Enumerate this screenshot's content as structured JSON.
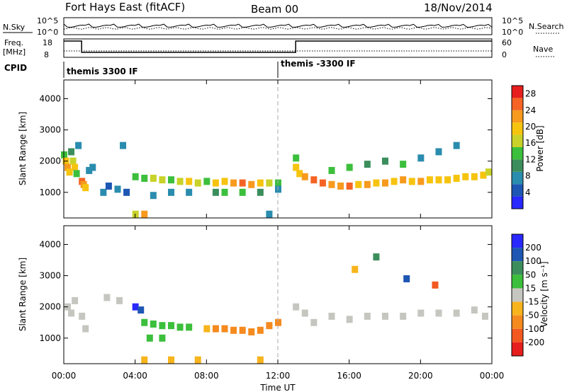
{
  "header": {
    "station": "Fort Hays East (fitACF)",
    "beam": "Beam 00",
    "date": "18/Nov/2014"
  },
  "panels": {
    "noise": {
      "left_label": "N.Sky",
      "right_label": "N.Search",
      "left_ticks": [
        "10^5",
        "10^0"
      ],
      "right_ticks": [
        "10^5",
        "10^0"
      ]
    },
    "freq": {
      "left_label_1": "Freq.",
      "left_label_2": "[MHz]",
      "right_label": "Nave",
      "left_ticks": [
        "18",
        "8"
      ],
      "right_ticks": [
        "60",
        "0"
      ]
    },
    "cpid": {
      "label": "CPID",
      "segments": [
        {
          "start_h": 0,
          "text": "themis 3300 IF"
        },
        {
          "start_h": 12,
          "text": "themis -3300 IF"
        }
      ]
    }
  },
  "colors": {
    "power": [
      "#2828ff",
      "#1e56b4",
      "#2a8cae",
      "#3b8e5c",
      "#3cbf3c",
      "#c8d228",
      "#f6c40e",
      "#f79a1e",
      "#f56424",
      "#e61e1e"
    ],
    "velocity": [
      "#2828ff",
      "#1e56b4",
      "#3b8e5c",
      "#3cbf3c",
      "#c6c6c0",
      "#f8b41c",
      "#f58a1e",
      "#f25820",
      "#e61e1e"
    ]
  },
  "chart_data": [
    {
      "type": "heatmap",
      "name": "power",
      "xlabel": "",
      "ylabel": "Slant Range [km]",
      "xlim_hours": [
        0,
        24
      ],
      "ylim_km": [
        180,
        4600
      ],
      "yticks": [
        1000,
        2000,
        3000,
        4000
      ],
      "colorbar_label": "Power [dB]",
      "colorbar_ticks": [
        4,
        8,
        12,
        16,
        20,
        24,
        28
      ],
      "colorbar_range": [
        0,
        30
      ],
      "cells": [
        {
          "x": 0.0,
          "y": 2200,
          "v": 14
        },
        {
          "x": 0.1,
          "y": 2000,
          "v": 20
        },
        {
          "x": 0.2,
          "y": 1800,
          "v": 22
        },
        {
          "x": 0.3,
          "y": 1650,
          "v": 18
        },
        {
          "x": 0.4,
          "y": 2300,
          "v": 10
        },
        {
          "x": 0.5,
          "y": 2000,
          "v": 16
        },
        {
          "x": 0.6,
          "y": 1800,
          "v": 20
        },
        {
          "x": 0.7,
          "y": 1600,
          "v": 14
        },
        {
          "x": 0.8,
          "y": 2500,
          "v": 6
        },
        {
          "x": 1.0,
          "y": 1350,
          "v": 24
        },
        {
          "x": 1.1,
          "y": 1250,
          "v": 22
        },
        {
          "x": 1.2,
          "y": 1150,
          "v": 18
        },
        {
          "x": 1.4,
          "y": 1700,
          "v": 8
        },
        {
          "x": 1.6,
          "y": 1800,
          "v": 6
        },
        {
          "x": 2.2,
          "y": 1000,
          "v": 6
        },
        {
          "x": 2.5,
          "y": 1200,
          "v": 4
        },
        {
          "x": 3.0,
          "y": 1100,
          "v": 6
        },
        {
          "x": 3.3,
          "y": 2500,
          "v": 6
        },
        {
          "x": 3.5,
          "y": 1000,
          "v": 4
        },
        {
          "x": 4.0,
          "y": 1500,
          "v": 12
        },
        {
          "x": 4.0,
          "y": 300,
          "v": 16
        },
        {
          "x": 4.5,
          "y": 1450,
          "v": 14
        },
        {
          "x": 4.5,
          "y": 300,
          "v": 22
        },
        {
          "x": 5.0,
          "y": 1450,
          "v": 16
        },
        {
          "x": 5.0,
          "y": 900,
          "v": 6
        },
        {
          "x": 5.5,
          "y": 1400,
          "v": 16
        },
        {
          "x": 6.0,
          "y": 1400,
          "v": 14
        },
        {
          "x": 6.0,
          "y": 1000,
          "v": 8
        },
        {
          "x": 6.5,
          "y": 1350,
          "v": 16
        },
        {
          "x": 7.0,
          "y": 1350,
          "v": 18
        },
        {
          "x": 7.0,
          "y": 1000,
          "v": 8
        },
        {
          "x": 7.5,
          "y": 1300,
          "v": 16
        },
        {
          "x": 8.0,
          "y": 1350,
          "v": 14
        },
        {
          "x": 8.5,
          "y": 1300,
          "v": 18
        },
        {
          "x": 8.5,
          "y": 1000,
          "v": 10
        },
        {
          "x": 9.0,
          "y": 1350,
          "v": 20
        },
        {
          "x": 9.0,
          "y": 1000,
          "v": 14
        },
        {
          "x": 9.5,
          "y": 1300,
          "v": 22
        },
        {
          "x": 10.0,
          "y": 1300,
          "v": 24
        },
        {
          "x": 10.0,
          "y": 1000,
          "v": 12
        },
        {
          "x": 10.5,
          "y": 1250,
          "v": 22
        },
        {
          "x": 11.0,
          "y": 1300,
          "v": 20
        },
        {
          "x": 11.0,
          "y": 1000,
          "v": 10
        },
        {
          "x": 11.5,
          "y": 1300,
          "v": 16
        },
        {
          "x": 11.5,
          "y": 300,
          "v": 8
        },
        {
          "x": 12.0,
          "y": 1300,
          "v": 12
        },
        {
          "x": 12.0,
          "y": 1100,
          "v": 6
        },
        {
          "x": 13.0,
          "y": 2100,
          "v": 14
        },
        {
          "x": 13.0,
          "y": 1800,
          "v": 18
        },
        {
          "x": 13.2,
          "y": 1600,
          "v": 20
        },
        {
          "x": 13.5,
          "y": 1500,
          "v": 22
        },
        {
          "x": 14.0,
          "y": 1400,
          "v": 24
        },
        {
          "x": 14.5,
          "y": 1300,
          "v": 24
        },
        {
          "x": 15.0,
          "y": 1250,
          "v": 22
        },
        {
          "x": 15.0,
          "y": 1700,
          "v": 14
        },
        {
          "x": 15.5,
          "y": 1200,
          "v": 22
        },
        {
          "x": 16.0,
          "y": 1200,
          "v": 24
        },
        {
          "x": 16.0,
          "y": 1800,
          "v": 12
        },
        {
          "x": 16.5,
          "y": 1250,
          "v": 20
        },
        {
          "x": 17.0,
          "y": 1250,
          "v": 22
        },
        {
          "x": 17.0,
          "y": 1900,
          "v": 10
        },
        {
          "x": 17.5,
          "y": 1300,
          "v": 20
        },
        {
          "x": 18.0,
          "y": 1300,
          "v": 22
        },
        {
          "x": 18.0,
          "y": 2000,
          "v": 10
        },
        {
          "x": 18.5,
          "y": 1350,
          "v": 20
        },
        {
          "x": 19.0,
          "y": 1400,
          "v": 22
        },
        {
          "x": 19.0,
          "y": 1900,
          "v": 12
        },
        {
          "x": 19.5,
          "y": 1350,
          "v": 20
        },
        {
          "x": 20.0,
          "y": 1350,
          "v": 22
        },
        {
          "x": 20.0,
          "y": 2100,
          "v": 8
        },
        {
          "x": 20.5,
          "y": 1400,
          "v": 20
        },
        {
          "x": 21.0,
          "y": 1400,
          "v": 20
        },
        {
          "x": 21.0,
          "y": 2300,
          "v": 6
        },
        {
          "x": 21.5,
          "y": 1400,
          "v": 20
        },
        {
          "x": 22.0,
          "y": 1450,
          "v": 18
        },
        {
          "x": 22.0,
          "y": 2500,
          "v": 6
        },
        {
          "x": 22.5,
          "y": 1500,
          "v": 20
        },
        {
          "x": 23.0,
          "y": 1500,
          "v": 18
        },
        {
          "x": 23.5,
          "y": 1550,
          "v": 20
        },
        {
          "x": 23.8,
          "y": 1650,
          "v": 16
        }
      ]
    },
    {
      "type": "heatmap",
      "name": "velocity",
      "xlabel": "Time UT",
      "ylabel": "Slant Range [km]",
      "xlim_hours": [
        0,
        24
      ],
      "xticks": [
        "00:00",
        "04:00",
        "08:00",
        "12:00",
        "16:00",
        "20:00",
        "00:00"
      ],
      "ylim_km": [
        180,
        4600
      ],
      "yticks": [
        1000,
        2000,
        3000,
        4000
      ],
      "colorbar_label": "Velocity [m s⁻¹]",
      "colorbar_ticks": [
        "200",
        "100",
        "50",
        "15",
        "-15",
        "-50",
        "-100",
        "-200"
      ],
      "cells": [
        {
          "x": 0.2,
          "y": 2000,
          "v": 0
        },
        {
          "x": 0.4,
          "y": 1800,
          "v": 0
        },
        {
          "x": 0.6,
          "y": 2200,
          "v": 0
        },
        {
          "x": 1.0,
          "y": 1700,
          "v": 0
        },
        {
          "x": 1.2,
          "y": 1300,
          "v": 0
        },
        {
          "x": 2.4,
          "y": 2300,
          "v": 0
        },
        {
          "x": 3.1,
          "y": 2200,
          "v": 0
        },
        {
          "x": 4.0,
          "y": 2000,
          "v": 230
        },
        {
          "x": 4.3,
          "y": 1900,
          "v": 120
        },
        {
          "x": 4.5,
          "y": 1500,
          "v": 40
        },
        {
          "x": 5.0,
          "y": 1450,
          "v": 40
        },
        {
          "x": 5.5,
          "y": 1400,
          "v": 40
        },
        {
          "x": 6.0,
          "y": 1400,
          "v": 30
        },
        {
          "x": 6.5,
          "y": 1350,
          "v": 40
        },
        {
          "x": 7.0,
          "y": 1350,
          "v": 30
        },
        {
          "x": 4.8,
          "y": 1000,
          "v": 30
        },
        {
          "x": 5.5,
          "y": 1000,
          "v": 40
        },
        {
          "x": 4.5,
          "y": 300,
          "v": -40
        },
        {
          "x": 6.0,
          "y": 300,
          "v": -40
        },
        {
          "x": 7.5,
          "y": 300,
          "v": -30
        },
        {
          "x": 8.0,
          "y": 1300,
          "v": -30
        },
        {
          "x": 8.5,
          "y": 1300,
          "v": -60
        },
        {
          "x": 9.0,
          "y": 1300,
          "v": -60
        },
        {
          "x": 9.5,
          "y": 1250,
          "v": -70
        },
        {
          "x": 10.0,
          "y": 1250,
          "v": -60
        },
        {
          "x": 10.5,
          "y": 1200,
          "v": -50
        },
        {
          "x": 11.0,
          "y": 1250,
          "v": -60
        },
        {
          "x": 11.5,
          "y": 1400,
          "v": -70
        },
        {
          "x": 12.0,
          "y": 1500,
          "v": -80
        },
        {
          "x": 11.0,
          "y": 300,
          "v": -30
        },
        {
          "x": 13.0,
          "y": 2000,
          "v": 0
        },
        {
          "x": 13.5,
          "y": 1800,
          "v": 0
        },
        {
          "x": 14.0,
          "y": 1500,
          "v": 0
        },
        {
          "x": 15.0,
          "y": 1700,
          "v": 0
        },
        {
          "x": 16.0,
          "y": 1600,
          "v": 0
        },
        {
          "x": 17.0,
          "y": 1700,
          "v": 0
        },
        {
          "x": 18.0,
          "y": 1700,
          "v": 0
        },
        {
          "x": 19.0,
          "y": 1700,
          "v": 0
        },
        {
          "x": 20.0,
          "y": 1800,
          "v": 0
        },
        {
          "x": 21.0,
          "y": 1800,
          "v": 0
        },
        {
          "x": 22.0,
          "y": 1800,
          "v": 0
        },
        {
          "x": 23.0,
          "y": 1900,
          "v": 0
        },
        {
          "x": 23.6,
          "y": 1700,
          "v": 0
        },
        {
          "x": 16.3,
          "y": 3200,
          "v": -30
        },
        {
          "x": 17.5,
          "y": 3600,
          "v": 60
        },
        {
          "x": 19.2,
          "y": 2900,
          "v": 150
        },
        {
          "x": 20.8,
          "y": 2700,
          "v": -120
        }
      ]
    }
  ]
}
